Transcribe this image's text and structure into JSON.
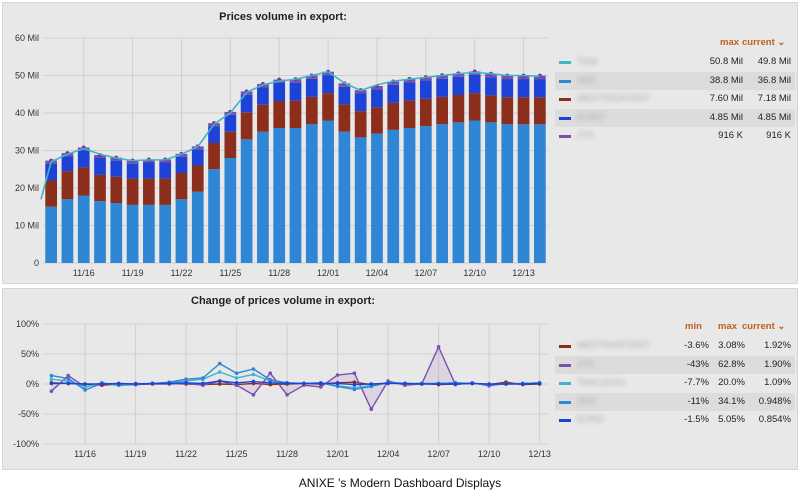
{
  "caption": "ANIXE 's Modern Dashboard Displays",
  "chart_data": [
    {
      "type": "bar",
      "title": "Prices volume in export:",
      "stacked": true,
      "categories": [
        "11/14",
        "11/15",
        "11/16",
        "11/17",
        "11/18",
        "11/19",
        "11/20",
        "11/21",
        "11/22",
        "11/23",
        "11/24",
        "11/25",
        "11/26",
        "11/27",
        "11/28",
        "11/29",
        "11/30",
        "12/01",
        "12/02",
        "12/03",
        "12/04",
        "12/05",
        "12/06",
        "12/07",
        "12/08",
        "12/09",
        "12/10",
        "12/11",
        "12/12",
        "12/13",
        "12/14"
      ],
      "tick_labels": [
        "11/16",
        "11/19",
        "11/22",
        "11/25",
        "11/28",
        "12/01",
        "12/04",
        "12/07",
        "12/10",
        "12/13"
      ],
      "y_tick_labels": [
        "0",
        "10 Mil",
        "20 Mil",
        "30 Mil",
        "40 Mil",
        "50 Mil",
        "60 Mil"
      ],
      "ylim": [
        0,
        60
      ],
      "unit": "Mil",
      "series": [
        {
          "name": "SEK",
          "color": "#2e86d4",
          "values": [
            15,
            17,
            18,
            16.5,
            16,
            15.5,
            15.5,
            15.5,
            17,
            19,
            25,
            28,
            33,
            35,
            36,
            36,
            37,
            38,
            35,
            33.5,
            34.5,
            35.5,
            36,
            36.5,
            37,
            37.5,
            38,
            37.5,
            37,
            37,
            37
          ]
        },
        {
          "name": "MEETINGPOINT",
          "color": "#8b2e1c",
          "values": [
            7,
            7.5,
            7.5,
            7,
            7,
            7,
            7,
            7,
            7,
            7,
            7,
            7,
            7.2,
            7.2,
            7.2,
            7.3,
            7.3,
            7.3,
            7.3,
            7,
            7,
            7.2,
            7.3,
            7.3,
            7.3,
            7.3,
            7.3,
            7.2,
            7.2,
            7.2,
            7.2
          ]
        },
        {
          "name": "EURO",
          "color": "#1d43d6",
          "values": [
            4.5,
            4,
            4.5,
            4.5,
            4.3,
            4,
            4.3,
            4.3,
            4.3,
            4.3,
            4.5,
            4.5,
            4.7,
            4.7,
            4.8,
            4.8,
            4.8,
            4.8,
            4.7,
            4.7,
            4.8,
            4.8,
            4.85,
            4.85,
            4.85,
            4.85,
            4.85,
            4.85,
            4.85,
            4.85,
            4.85
          ]
        },
        {
          "name": "JTS",
          "color": "#7a4fb0",
          "values": [
            0.8,
            0.8,
            0.8,
            0.8,
            0.8,
            0.8,
            0.8,
            0.8,
            0.8,
            0.8,
            0.8,
            0.8,
            0.85,
            0.85,
            0.9,
            0.9,
            0.9,
            0.9,
            0.9,
            0.9,
            0.9,
            0.9,
            0.92,
            0.92,
            0.92,
            0.92,
            0.92,
            0.92,
            0.92,
            0.92,
            0.92
          ]
        }
      ],
      "total_line": {
        "name": "Total",
        "color": "#3fb5c8",
        "values": [
          27,
          29,
          30.5,
          29,
          28,
          27.3,
          27.5,
          27.5,
          29,
          31,
          37,
          40,
          45.5,
          47.5,
          48.5,
          49,
          50,
          51,
          48,
          46,
          47.5,
          48.5,
          49,
          49.5,
          50,
          50.5,
          50.8,
          50.5,
          50,
          50,
          49.8
        ]
      },
      "legend": {
        "headers": [
          "max",
          "current ⌄"
        ],
        "rows": [
          {
            "name": "Total",
            "color": "#3fb5c8",
            "max": "50.8 Mil",
            "current": "49.8 Mil"
          },
          {
            "name": "SEK",
            "color": "#2e86d4",
            "max": "38.8 Mil",
            "current": "36.8 Mil"
          },
          {
            "name": "MEETINGPOINT",
            "color": "#8b2e1c",
            "max": "7.60 Mil",
            "current": "7.18 Mil"
          },
          {
            "name": "EURO",
            "color": "#1d43d6",
            "max": "4.85 Mil",
            "current": "4.85 Mil"
          },
          {
            "name": "JTS",
            "color": "#7a4fb0",
            "max": "916 K",
            "current": "916 K"
          }
        ]
      }
    },
    {
      "type": "line",
      "title": "Change of prices volume in export:",
      "categories": [
        "11/14",
        "11/15",
        "11/16",
        "11/17",
        "11/18",
        "11/19",
        "11/20",
        "11/21",
        "11/22",
        "11/23",
        "11/24",
        "11/25",
        "11/26",
        "11/27",
        "11/28",
        "11/29",
        "11/30",
        "12/01",
        "12/02",
        "12/03",
        "12/04",
        "12/05",
        "12/06",
        "12/07",
        "12/08",
        "12/09",
        "12/10",
        "12/11",
        "12/12",
        "12/13"
      ],
      "tick_labels": [
        "11/16",
        "11/19",
        "11/22",
        "11/25",
        "11/28",
        "12/01",
        "12/04",
        "12/07",
        "12/10",
        "12/13"
      ],
      "y_tick_labels": [
        "100%",
        "50%",
        "0%",
        "-50%",
        "-100%"
      ],
      "ylim": [
        -100,
        100
      ],
      "unit": "%",
      "series": [
        {
          "name": "MEETINGPOINT",
          "color": "#8b2e1c",
          "values": [
            2,
            1,
            0,
            -2,
            0,
            -1,
            0,
            1,
            0,
            -1,
            0,
            -1,
            1,
            -1,
            0,
            1,
            0,
            2,
            3,
            -1,
            2,
            0,
            1,
            -1,
            0,
            1,
            -1,
            3,
            -1,
            0
          ]
        },
        {
          "name": "JTS",
          "color": "#7a4fb0",
          "values": [
            -12,
            14,
            -5,
            2,
            -2,
            1,
            0,
            0,
            1,
            -2,
            5,
            -2,
            -18,
            18,
            -18,
            -2,
            -5,
            15,
            18,
            -42,
            5,
            -2,
            0,
            62,
            -1,
            2,
            -3,
            1,
            0,
            1
          ]
        },
        {
          "name": "Total prices",
          "color": "#3fb5c8",
          "values": [
            8,
            5,
            -5,
            2,
            -2,
            0,
            1,
            2,
            5,
            8,
            20,
            10,
            16,
            5,
            2,
            1,
            2,
            -3,
            -6,
            -3,
            2,
            1,
            0,
            1,
            2,
            1,
            -1,
            0,
            1,
            2
          ]
        },
        {
          "name": "SEK",
          "color": "#2e86d4",
          "values": [
            14,
            9,
            -10,
            1,
            -2,
            -1,
            1,
            3,
            8,
            10,
            34,
            18,
            25,
            7,
            2,
            1,
            2,
            -4,
            -9,
            -4,
            3,
            1,
            1,
            1,
            2,
            1,
            -1,
            0,
            1,
            2
          ]
        },
        {
          "name": "EURO",
          "color": "#1d43d6",
          "values": [
            1,
            1,
            0,
            0,
            1,
            0,
            1,
            1,
            2,
            1,
            5,
            2,
            4,
            2,
            1,
            1,
            1,
            1,
            -1,
            0,
            1,
            1,
            0,
            0,
            0,
            1,
            0,
            0,
            0,
            1
          ]
        }
      ],
      "legend": {
        "headers": [
          "min",
          "max",
          "current ⌄"
        ],
        "rows": [
          {
            "name": "MEETINGPOINT",
            "color": "#8b2e1c",
            "min": "-3.6%",
            "max": "3.08%",
            "current": "1.92%"
          },
          {
            "name": "JTS",
            "color": "#7a4fb0",
            "min": "-43%",
            "max": "62.8%",
            "current": "1.90%"
          },
          {
            "name": "Total prices",
            "color": "#3fb5c8",
            "min": "-7.7%",
            "max": "20.0%",
            "current": "1.09%"
          },
          {
            "name": "SEK",
            "color": "#2e86d4",
            "min": "-11%",
            "max": "34.1%",
            "current": "0.948%"
          },
          {
            "name": "EURO",
            "color": "#1d43d6",
            "min": "-1.5%",
            "max": "5.05%",
            "current": "0.854%"
          }
        ]
      }
    }
  ]
}
